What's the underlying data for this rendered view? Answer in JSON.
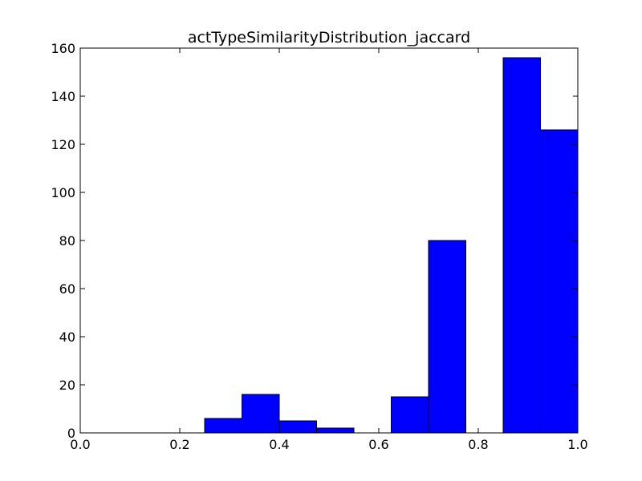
{
  "chart_data": {
    "type": "bar",
    "title": "actTypeSimilarityDistribution_jaccard",
    "xlabel": "",
    "ylabel": "",
    "xlim": [
      0.0,
      1.0
    ],
    "ylim": [
      0,
      160
    ],
    "xticks": [
      "0.0",
      "0.2",
      "0.4",
      "0.6",
      "0.8",
      "1.0"
    ],
    "yticks": [
      "0",
      "20",
      "40",
      "60",
      "80",
      "100",
      "120",
      "140",
      "160"
    ],
    "grid": false,
    "legend": "none",
    "bar_color": "#0000ff",
    "edge_color": "#000000",
    "bins": [
      {
        "x0": 0.25,
        "x1": 0.325,
        "count": 6
      },
      {
        "x0": 0.325,
        "x1": 0.4,
        "count": 16
      },
      {
        "x0": 0.4,
        "x1": 0.475,
        "count": 5
      },
      {
        "x0": 0.475,
        "x1": 0.55,
        "count": 2
      },
      {
        "x0": 0.55,
        "x1": 0.625,
        "count": 0
      },
      {
        "x0": 0.625,
        "x1": 0.7,
        "count": 15
      },
      {
        "x0": 0.7,
        "x1": 0.775,
        "count": 80
      },
      {
        "x0": 0.775,
        "x1": 0.85,
        "count": 0
      },
      {
        "x0": 0.85,
        "x1": 0.925,
        "count": 156
      },
      {
        "x0": 0.925,
        "x1": 1.0,
        "count": 126
      }
    ]
  }
}
